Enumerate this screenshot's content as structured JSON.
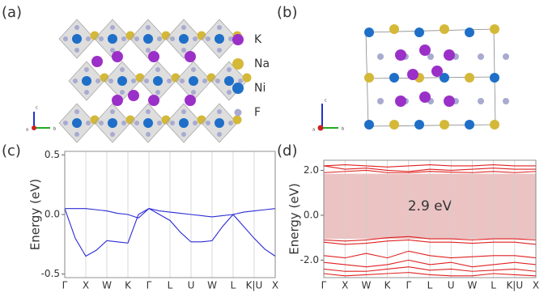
{
  "panel_labels": [
    "(a)",
    "(b)",
    "(c)",
    "(d)"
  ],
  "legend": [
    "K",
    "Na",
    "Ni",
    "F"
  ],
  "axis_triads": [
    [
      "c",
      "a",
      "b"
    ],
    [
      "c",
      "a",
      "b"
    ]
  ],
  "chart_data": [
    {
      "type": "line",
      "ylabel": "Energy (eV)",
      "x": [
        0,
        0.5,
        1,
        1.5,
        2,
        2.5,
        3,
        3.5,
        4,
        4.5,
        5,
        5.5,
        6,
        6.5,
        7,
        7.5,
        8,
        8.5,
        9,
        9.5,
        10
      ],
      "xlim": [
        0,
        10
      ],
      "xticks": [
        {
          "value": 0,
          "label": "Γ"
        },
        {
          "value": 1,
          "label": "X"
        },
        {
          "value": 2,
          "label": "W"
        },
        {
          "value": 3,
          "label": "K"
        },
        {
          "value": 4,
          "label": "Γ"
        },
        {
          "value": 5,
          "label": "L"
        },
        {
          "value": 6,
          "label": "U"
        },
        {
          "value": 7,
          "label": "W"
        },
        {
          "value": 8,
          "label": "L"
        },
        {
          "value": 9,
          "label": "K|U"
        },
        {
          "value": 10,
          "label": "X"
        }
      ],
      "ylim": [
        -0.53,
        0.53
      ],
      "yticks": [
        {
          "value": 0.5,
          "label": "0.5"
        },
        {
          "value": 0,
          "label": "0.0"
        },
        {
          "value": -0.5,
          "label": "-0.5"
        }
      ],
      "grid": true,
      "series": [
        {
          "color": "#2b2bd6",
          "values": [
            0.05,
            0.05,
            0.05,
            0.04,
            0.03,
            0.01,
            0.0,
            -0.03,
            0.05,
            0.03,
            0.02,
            0.01,
            0.0,
            -0.01,
            -0.02,
            -0.01,
            0.0,
            0.02,
            0.03,
            0.04,
            0.05
          ]
        },
        {
          "color": "#2b2bd6",
          "values": [
            0.05,
            -0.2,
            -0.35,
            -0.3,
            -0.22,
            -0.23,
            -0.24,
            0.0,
            0.05,
            0.0,
            -0.05,
            -0.15,
            -0.23,
            -0.23,
            -0.22,
            -0.1,
            0.0,
            -0.1,
            -0.2,
            -0.29,
            -0.35
          ]
        }
      ]
    },
    {
      "type": "line",
      "ylabel": "Energy (eV)",
      "x": [
        0,
        1,
        2,
        3,
        4,
        5,
        6,
        7,
        8,
        9,
        10
      ],
      "xlim": [
        0,
        10
      ],
      "xticks": [
        {
          "value": 0,
          "label": "Γ"
        },
        {
          "value": 1,
          "label": "X"
        },
        {
          "value": 2,
          "label": "W"
        },
        {
          "value": 3,
          "label": "K"
        },
        {
          "value": 4,
          "label": "Γ"
        },
        {
          "value": 5,
          "label": "L"
        },
        {
          "value": 6,
          "label": "U"
        },
        {
          "value": 7,
          "label": "W"
        },
        {
          "value": 8,
          "label": "L"
        },
        {
          "value": 9,
          "label": "K|U"
        },
        {
          "value": 10,
          "label": "X"
        }
      ],
      "ylim": [
        -2.78,
        2.45
      ],
      "yticks": [
        {
          "value": 2,
          "label": "2.0"
        },
        {
          "value": 0,
          "label": "0.0"
        },
        {
          "value": -2,
          "label": "-2.0"
        }
      ],
      "grid": true,
      "band_gap": {
        "range": [
          -1.05,
          1.85
        ],
        "label": "2.9 eV",
        "color": "#ebc3c3"
      },
      "series": [
        {
          "color": "#e02020",
          "values": [
            2.2,
            2.25,
            2.2,
            2.15,
            2.2,
            2.25,
            2.2,
            2.2,
            2.25,
            2.2,
            2.2
          ]
        },
        {
          "color": "#e02020",
          "values": [
            2.2,
            2.05,
            2.1,
            2.0,
            1.95,
            2.05,
            2.0,
            2.05,
            2.1,
            2.05,
            2.05
          ]
        },
        {
          "color": "#e02020",
          "values": [
            1.9,
            1.95,
            2.0,
            1.9,
            1.9,
            1.95,
            1.92,
            1.9,
            1.95,
            1.9,
            1.95
          ]
        },
        {
          "color": "#e02020",
          "values": [
            -1.1,
            -1.15,
            -1.1,
            -1.0,
            -0.95,
            -1.05,
            -1.05,
            -1.1,
            -1.05,
            -1.05,
            -1.1
          ]
        },
        {
          "color": "#e02020",
          "values": [
            -1.2,
            -1.3,
            -1.25,
            -1.15,
            -1.1,
            -1.2,
            -1.2,
            -1.25,
            -1.2,
            -1.2,
            -1.3
          ]
        },
        {
          "color": "#e02020",
          "values": [
            -1.8,
            -1.9,
            -1.7,
            -1.9,
            -1.6,
            -1.8,
            -1.9,
            -1.85,
            -1.8,
            -1.8,
            -1.9
          ]
        },
        {
          "color": "#e02020",
          "values": [
            -2.1,
            -2.2,
            -2.3,
            -2.2,
            -2.0,
            -2.2,
            -2.1,
            -2.3,
            -2.2,
            -2.1,
            -2.2
          ]
        },
        {
          "color": "#e02020",
          "values": [
            -2.4,
            -2.5,
            -2.5,
            -2.4,
            -2.3,
            -2.45,
            -2.4,
            -2.5,
            -2.45,
            -2.4,
            -2.5
          ]
        },
        {
          "color": "#e02020",
          "values": [
            -2.6,
            -2.7,
            -2.65,
            -2.6,
            -2.55,
            -2.65,
            -2.7,
            -2.7,
            -2.6,
            -2.65,
            -2.7
          ]
        }
      ]
    }
  ]
}
